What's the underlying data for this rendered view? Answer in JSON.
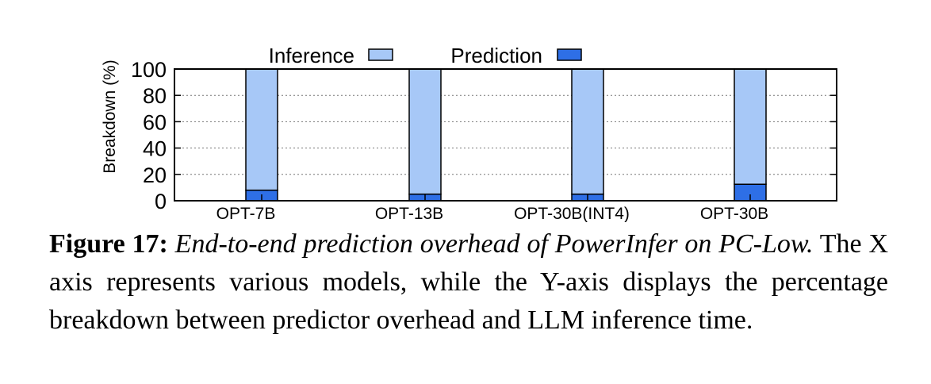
{
  "chart_data": {
    "type": "bar",
    "stacked": true,
    "categories": [
      "OPT-7B",
      "OPT-13B",
      "OPT-30B(INT4)",
      "OPT-30B"
    ],
    "series": [
      {
        "name": "Prediction",
        "values": [
          8,
          5,
          5,
          12.5
        ],
        "color": "#2e6fe6"
      },
      {
        "name": "Inference",
        "values": [
          92,
          95,
          95,
          87.5
        ],
        "color": "#a7c8f7"
      }
    ],
    "ylabel": "Breakdown (%)",
    "xlabel": "",
    "ylim": [
      0,
      100
    ],
    "yticks": [
      0,
      20,
      40,
      60,
      80,
      100
    ],
    "grid": "horizontal dotted",
    "legend_placement": "top"
  },
  "caption": {
    "label": "Figure 17:",
    "title": "End-to-end prediction overhead of PowerInfer on PC-Low.",
    "text": "The X axis represents various models, while the Y-axis displays the percentage breakdown between predictor overhead and LLM inference time."
  }
}
